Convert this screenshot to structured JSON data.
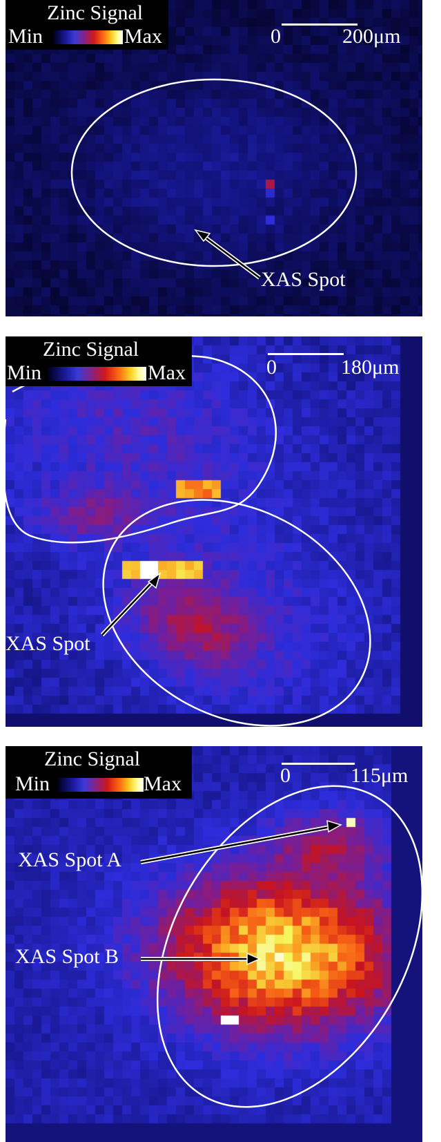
{
  "panels": [
    {
      "legend": {
        "title": "Zinc Signal",
        "min": "Min",
        "max": "Max"
      },
      "scale_bar": {
        "zero": "0",
        "length": "200μm"
      },
      "labels": [
        "XAS Spot"
      ]
    },
    {
      "legend": {
        "title": "Zinc Signal",
        "min": "Min",
        "max": "Max"
      },
      "scale_bar": {
        "zero": "0",
        "length": "180μm"
      },
      "labels": [
        "XAS Spot"
      ]
    },
    {
      "legend": {
        "title": "Zinc Signal",
        "min": "Min",
        "max": "Max"
      },
      "scale_bar": {
        "zero": "0",
        "length": "115μm"
      },
      "labels": [
        "XAS Spot A",
        "XAS Spot B"
      ]
    }
  ]
}
